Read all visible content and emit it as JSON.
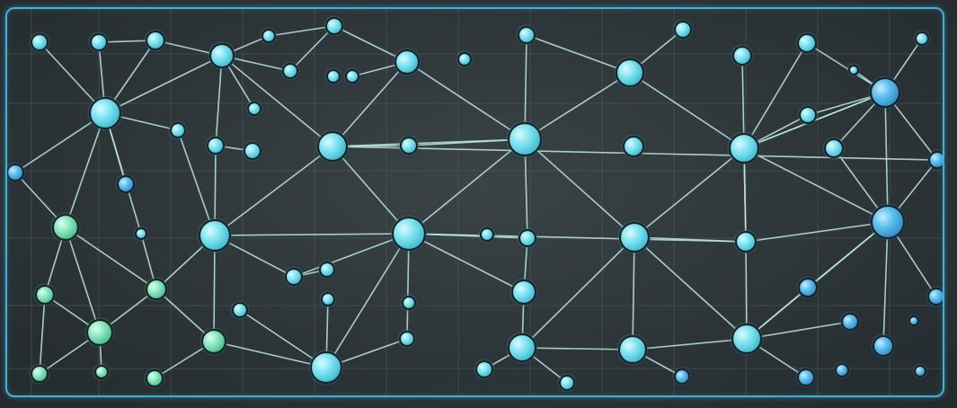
{
  "diagram": {
    "type": "network-graph",
    "labels": [],
    "colors": {
      "frame": "#3fb0d6",
      "edge": "#bde9df",
      "node_cyan": "#6fe0ec",
      "node_green": "#7fe3b8",
      "node_blue": "#4fb4e6",
      "background": "#2d3538"
    }
  }
}
